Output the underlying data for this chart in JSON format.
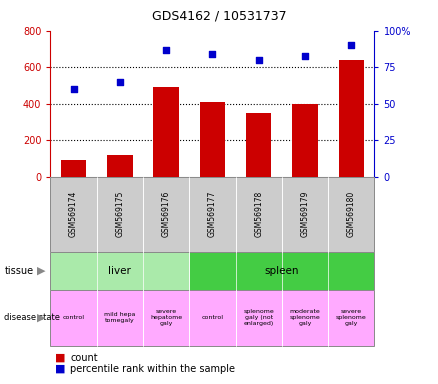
{
  "title": "GDS4162 / 10531737",
  "samples": [
    "GSM569174",
    "GSM569175",
    "GSM569176",
    "GSM569177",
    "GSM569178",
    "GSM569179",
    "GSM569180"
  ],
  "counts": [
    90,
    120,
    490,
    410,
    350,
    400,
    640
  ],
  "percentiles": [
    60,
    65,
    87,
    84,
    80,
    83,
    90
  ],
  "bar_color": "#cc0000",
  "dot_color": "#0000cc",
  "left_ylim": [
    0,
    800
  ],
  "right_ylim": [
    0,
    100
  ],
  "left_yticks": [
    0,
    200,
    400,
    600,
    800
  ],
  "right_yticks": [
    0,
    25,
    50,
    75,
    100
  ],
  "right_yticklabels": [
    "0",
    "25",
    "50",
    "75",
    "100%"
  ],
  "grid_values": [
    200,
    400,
    600
  ],
  "tissue_groups": [
    {
      "label": "liver",
      "start": 0,
      "end": 3,
      "color": "#aaeaaa"
    },
    {
      "label": "spleen",
      "start": 3,
      "end": 7,
      "color": "#44cc44"
    }
  ],
  "disease_states": [
    {
      "label": "control",
      "color": "#ffaaff"
    },
    {
      "label": "mild hepa\ntomegaly",
      "color": "#ffaaff"
    },
    {
      "label": "severe\nhepatome\ngaly",
      "color": "#ffaaff"
    },
    {
      "label": "control",
      "color": "#ffaaff"
    },
    {
      "label": "splenome\ngaly (not\nenlarged)",
      "color": "#ffaaff"
    },
    {
      "label": "moderate\nsplenome\ngaly",
      "color": "#ffaaff"
    },
    {
      "label": "severe\nsplenome\ngaly",
      "color": "#ffaaff"
    }
  ],
  "left_axis_color": "#cc0000",
  "right_axis_color": "#0000cc",
  "sample_bg_color": "#cccccc"
}
